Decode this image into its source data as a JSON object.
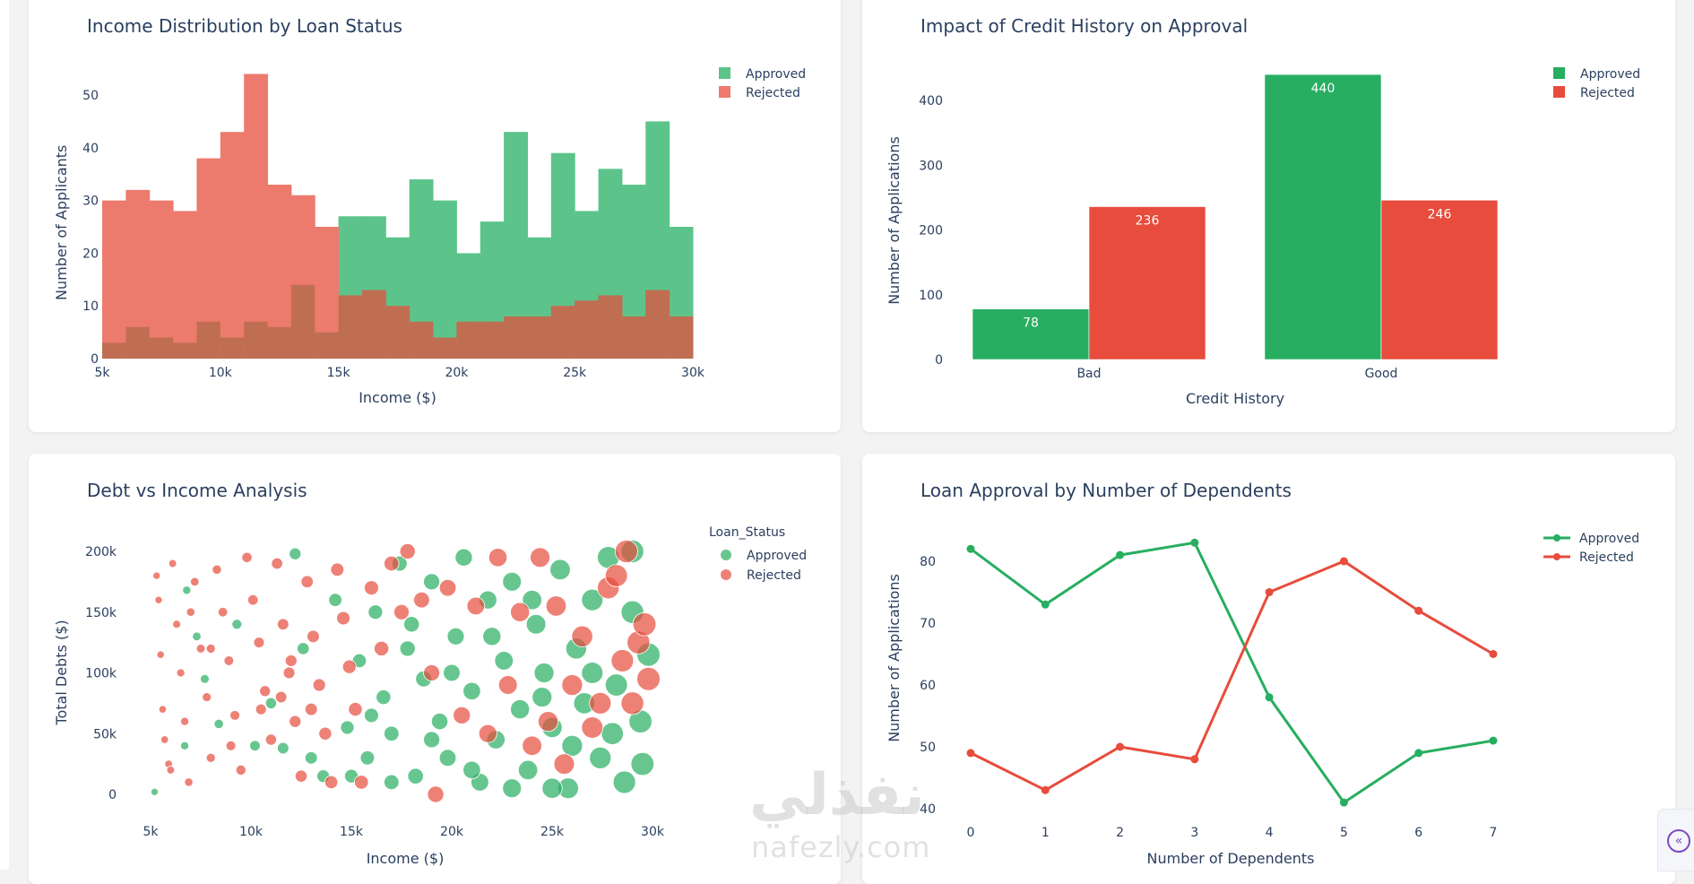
{
  "colors": {
    "approved_hist": "#5cc48a",
    "rejected_hist": "#ec7b6e",
    "overlap_hist": "#bf6e52",
    "approved": "#27ae60",
    "rejected": "#e74c3c",
    "text": "#2a3f5f",
    "collapse_accent": "#7b4bc4"
  },
  "watermark": {
    "arabic": "نفذلي",
    "latin": "nafezly.com"
  },
  "collapse_button": {
    "icon": "chevron-double-left-icon",
    "glyph": "«"
  },
  "chart_data": [
    {
      "id": "income_hist",
      "type": "bar",
      "subtype": "overlay-histogram",
      "title": "Income Distribution by Loan Status",
      "xlabel": "Income ($)",
      "ylabel": "Number of Applicants",
      "xlim": [
        5000,
        30000
      ],
      "ylim": [
        0,
        55
      ],
      "bin_size": 1000,
      "x_ticks": [
        5000,
        10000,
        15000,
        20000,
        25000,
        30000
      ],
      "x_tick_labels": [
        "5k",
        "10k",
        "15k",
        "20k",
        "25k",
        "30k"
      ],
      "y_ticks": [
        0,
        10,
        20,
        30,
        40,
        50
      ],
      "y_tick_labels": [
        "0",
        "10",
        "20",
        "30",
        "40",
        "50"
      ],
      "legend": {
        "position": "top-right",
        "items": [
          "Approved",
          "Rejected"
        ]
      },
      "series": [
        {
          "name": "Approved",
          "values": [
            3,
            6,
            4,
            3,
            7,
            4,
            7,
            6,
            14,
            5,
            27,
            27,
            23,
            34,
            30,
            20,
            26,
            43,
            23,
            39,
            28,
            36,
            33,
            45,
            25
          ]
        },
        {
          "name": "Rejected",
          "values": [
            30,
            32,
            30,
            28,
            38,
            43,
            54,
            33,
            31,
            25,
            12,
            13,
            10,
            7,
            4,
            7,
            7,
            8,
            8,
            10,
            11,
            12,
            8,
            13,
            8
          ]
        }
      ]
    },
    {
      "id": "credit_bar",
      "type": "bar",
      "title": "Impact of Credit History on Approval",
      "xlabel": "Credit History",
      "ylabel": "Number of Applications",
      "categories": [
        "Bad",
        "Good"
      ],
      "ylim": [
        0,
        460
      ],
      "y_ticks": [
        0,
        100,
        200,
        300,
        400
      ],
      "y_tick_labels": [
        "0",
        "100",
        "200",
        "300",
        "400"
      ],
      "legend": {
        "position": "top-right",
        "items": [
          "Approved",
          "Rejected"
        ]
      },
      "series": [
        {
          "name": "Approved",
          "values": [
            78,
            440
          ],
          "labels": [
            "78",
            "440"
          ]
        },
        {
          "name": "Rejected",
          "values": [
            236,
            246
          ],
          "labels": [
            "236",
            "246"
          ]
        }
      ]
    },
    {
      "id": "debt_scatter",
      "type": "scatter",
      "title": "Debt vs Income Analysis",
      "xlabel": "Income ($)",
      "ylabel": "Total Debts ($)",
      "xlim": [
        5000,
        30000
      ],
      "ylim": [
        0,
        200000
      ],
      "x_ticks": [
        5000,
        10000,
        15000,
        20000,
        25000,
        30000
      ],
      "x_tick_labels": [
        "5k",
        "10k",
        "15k",
        "20k",
        "25k",
        "30k"
      ],
      "y_ticks": [
        0,
        50000,
        100000,
        150000,
        200000
      ],
      "y_tick_labels": [
        "0",
        "50k",
        "100k",
        "150k",
        "200k"
      ],
      "legend": {
        "position": "top-right",
        "title": "Loan_Status",
        "items": [
          "Approved",
          "Rejected"
        ]
      },
      "marker_size_by": "income",
      "series": [
        {
          "name": "Approved",
          "points": [
            [
              5200,
              2000
            ],
            [
              6800,
              168000
            ],
            [
              7300,
              130000
            ],
            [
              7700,
              95000
            ],
            [
              6700,
              40000
            ],
            [
              8400,
              58000
            ],
            [
              9300,
              140000
            ],
            [
              10200,
              40000
            ],
            [
              11000,
              75000
            ],
            [
              11600,
              38000
            ],
            [
              12200,
              198000
            ],
            [
              12600,
              120000
            ],
            [
              13000,
              30000
            ],
            [
              13600,
              15000
            ],
            [
              14200,
              160000
            ],
            [
              14800,
              55000
            ],
            [
              15400,
              110000
            ],
            [
              15800,
              30000
            ],
            [
              16200,
              150000
            ],
            [
              16600,
              80000
            ],
            [
              17000,
              50000
            ],
            [
              17400,
              190000
            ],
            [
              17800,
              120000
            ],
            [
              18200,
              15000
            ],
            [
              18600,
              95000
            ],
            [
              19000,
              175000
            ],
            [
              19400,
              60000
            ],
            [
              19800,
              30000
            ],
            [
              20200,
              130000
            ],
            [
              20600,
              195000
            ],
            [
              21000,
              85000
            ],
            [
              21400,
              10000
            ],
            [
              21800,
              160000
            ],
            [
              22200,
              45000
            ],
            [
              22600,
              110000
            ],
            [
              23000,
              175000
            ],
            [
              23400,
              70000
            ],
            [
              23800,
              20000
            ],
            [
              24200,
              140000
            ],
            [
              24600,
              100000
            ],
            [
              25000,
              55000
            ],
            [
              25400,
              185000
            ],
            [
              25800,
              5000
            ],
            [
              26200,
              120000
            ],
            [
              26600,
              75000
            ],
            [
              27000,
              160000
            ],
            [
              27400,
              30000
            ],
            [
              27800,
              195000
            ],
            [
              28200,
              90000
            ],
            [
              28600,
              10000
            ],
            [
              29000,
              150000
            ],
            [
              29400,
              60000
            ],
            [
              29800,
              115000
            ],
            [
              16000,
              65000
            ],
            [
              18000,
              140000
            ],
            [
              20000,
              100000
            ],
            [
              22000,
              130000
            ],
            [
              24000,
              160000
            ],
            [
              26000,
              40000
            ],
            [
              28000,
              50000
            ],
            [
              29000,
              200000
            ],
            [
              25000,
              5000
            ],
            [
              23000,
              5000
            ],
            [
              21000,
              20000
            ],
            [
              19000,
              45000
            ],
            [
              17000,
              10000
            ],
            [
              15000,
              15000
            ],
            [
              27000,
              100000
            ],
            [
              29500,
              25000
            ],
            [
              24500,
              80000
            ]
          ]
        },
        {
          "name": "Rejected",
          "points": [
            [
              5300,
              180000
            ],
            [
              5400,
              160000
            ],
            [
              5500,
              115000
            ],
            [
              5600,
              70000
            ],
            [
              5700,
              45000
            ],
            [
              5900,
              25000
            ],
            [
              6100,
              190000
            ],
            [
              6300,
              140000
            ],
            [
              6500,
              100000
            ],
            [
              6700,
              60000
            ],
            [
              6900,
              10000
            ],
            [
              7200,
              175000
            ],
            [
              7500,
              120000
            ],
            [
              7800,
              80000
            ],
            [
              8000,
              30000
            ],
            [
              8300,
              185000
            ],
            [
              8600,
              150000
            ],
            [
              8900,
              110000
            ],
            [
              9200,
              65000
            ],
            [
              9500,
              20000
            ],
            [
              9800,
              195000
            ],
            [
              10100,
              160000
            ],
            [
              10400,
              125000
            ],
            [
              10700,
              85000
            ],
            [
              11000,
              45000
            ],
            [
              11300,
              190000
            ],
            [
              11600,
              140000
            ],
            [
              11900,
              100000
            ],
            [
              12200,
              60000
            ],
            [
              12500,
              15000
            ],
            [
              12800,
              175000
            ],
            [
              13100,
              130000
            ],
            [
              13400,
              90000
            ],
            [
              13700,
              50000
            ],
            [
              14000,
              10000
            ],
            [
              14300,
              185000
            ],
            [
              14600,
              145000
            ],
            [
              14900,
              105000
            ],
            [
              15200,
              70000
            ],
            [
              15500,
              10000
            ],
            [
              16000,
              170000
            ],
            [
              16500,
              120000
            ],
            [
              17000,
              190000
            ],
            [
              17500,
              150000
            ],
            [
              17800,
              200000
            ],
            [
              18500,
              160000
            ],
            [
              19000,
              100000
            ],
            [
              19200,
              0
            ],
            [
              19800,
              170000
            ],
            [
              20500,
              65000
            ],
            [
              21200,
              155000
            ],
            [
              21800,
              50000
            ],
            [
              22300,
              195000
            ],
            [
              22800,
              90000
            ],
            [
              23400,
              150000
            ],
            [
              24000,
              40000
            ],
            [
              24400,
              195000
            ],
            [
              24800,
              60000
            ],
            [
              25200,
              155000
            ],
            [
              25600,
              25000
            ],
            [
              26000,
              90000
            ],
            [
              26500,
              130000
            ],
            [
              27000,
              55000
            ],
            [
              27400,
              75000
            ],
            [
              27800,
              170000
            ],
            [
              28200,
              180000
            ],
            [
              28500,
              110000
            ],
            [
              28700,
              200000
            ],
            [
              29000,
              75000
            ],
            [
              29300,
              125000
            ],
            [
              29600,
              140000
            ],
            [
              29800,
              95000
            ],
            [
              10500,
              70000
            ],
            [
              11500,
              80000
            ],
            [
              12000,
              110000
            ],
            [
              13000,
              70000
            ],
            [
              9000,
              40000
            ],
            [
              8000,
              120000
            ],
            [
              7000,
              150000
            ],
            [
              6000,
              20000
            ]
          ]
        }
      ]
    },
    {
      "id": "dependents_line",
      "type": "line",
      "title": "Loan Approval by Number of Dependents",
      "xlabel": "Number of Dependents",
      "ylabel": "Number of Applications",
      "x": [
        0,
        1,
        2,
        3,
        4,
        5,
        6,
        7
      ],
      "x_tick_labels": [
        "0",
        "1",
        "2",
        "3",
        "4",
        "5",
        "6",
        "7"
      ],
      "ylim": [
        40,
        85
      ],
      "y_ticks": [
        40,
        50,
        60,
        70,
        80
      ],
      "y_tick_labels": [
        "40",
        "50",
        "60",
        "70",
        "80"
      ],
      "legend": {
        "position": "top-right",
        "items": [
          "Approved",
          "Rejected"
        ]
      },
      "series": [
        {
          "name": "Approved",
          "values": [
            82,
            73,
            81,
            83,
            58,
            41,
            49,
            51
          ]
        },
        {
          "name": "Rejected",
          "values": [
            49,
            43,
            50,
            48,
            75,
            80,
            72,
            65
          ]
        }
      ]
    }
  ]
}
